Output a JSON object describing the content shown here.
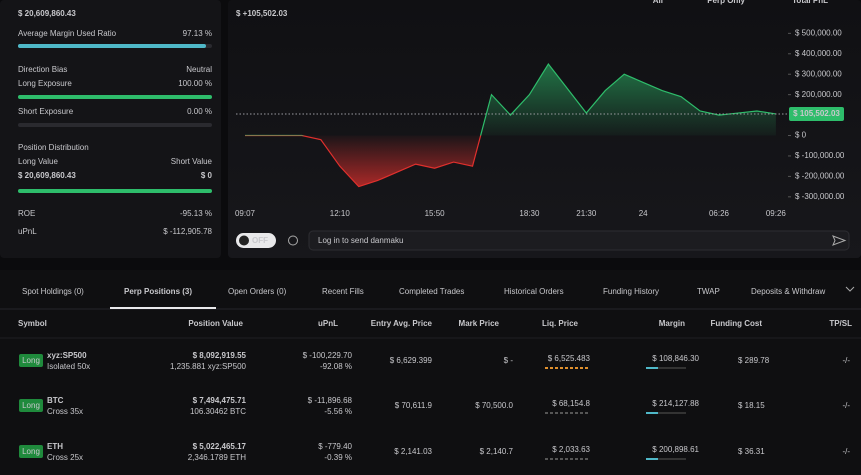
{
  "account": {
    "total_value": "$ 20,609,860.43",
    "margin_ratio_label": "Average Margin Used Ratio",
    "margin_ratio": "97.13 %",
    "direction_bias_label": "Direction Bias",
    "direction_bias": "Neutral",
    "long_exposure_label": "Long Exposure",
    "long_exposure": "100.00 %",
    "short_exposure_label": "Short Exposure",
    "short_exposure": "0.00 %",
    "position_distribution_label": "Position Distribution",
    "long_value_label": "Long Value",
    "short_value_label": "Short Value",
    "long_value": "$ 20,609,860.43",
    "short_value": "$ 0",
    "roe_label": "ROE",
    "roe": "-95.13 %",
    "upnl_label": "uPnL",
    "upnl": "$ -112,905.78"
  },
  "filters": [
    "All",
    "Perp Only",
    "Total PnL"
  ],
  "chart_data": {
    "type": "line",
    "title": "$ +105,502.03",
    "current_label": "$ 105,502.03",
    "categories": [
      "09:07",
      null,
      null,
      null,
      null,
      "12:10",
      null,
      null,
      null,
      null,
      "15:50",
      null,
      null,
      null,
      null,
      "18:30",
      null,
      null,
      "21:30",
      null,
      null,
      "24",
      null,
      null,
      null,
      "06:26",
      null,
      null,
      "09:26"
    ],
    "values": [
      0,
      0,
      0,
      0,
      -20000,
      -150000,
      -250000,
      -220000,
      -180000,
      -140000,
      -160000,
      -130000,
      -150000,
      200000,
      100000,
      200000,
      350000,
      230000,
      110000,
      220000,
      300000,
      260000,
      220000,
      190000,
      120000,
      100000,
      110000,
      120000,
      105502.03
    ],
    "ylim": [
      -340000,
      580000
    ],
    "yticks": [
      {
        "value": 500000,
        "label": "$ 500,000.00"
      },
      {
        "value": 400000,
        "label": "$ 400,000.00"
      },
      {
        "value": 300000,
        "label": "$ 300,000.00"
      },
      {
        "value": 200000,
        "label": "$ 200,000.00"
      },
      {
        "value": 0,
        "label": "$ 0"
      },
      {
        "value": -100000,
        "label": "$ -100,000.00"
      },
      {
        "value": -200000,
        "label": "$ -200,000.00"
      },
      {
        "value": -300000,
        "label": "$ -300,000.00"
      }
    ],
    "positive_color": "#2ebd6b",
    "negative_color": "#e0302d"
  },
  "chat": {
    "toggle": "OFF",
    "placeholder": "Log in to send danmaku"
  },
  "tabs": [
    "Spot Holdings (0)",
    "Perp Positions (3)",
    "Open Orders (0)",
    "Recent Fills",
    "Completed Trades",
    "Historical Orders",
    "Funding History",
    "TWAP",
    "Deposits & Withdraw"
  ],
  "table": {
    "headers": [
      "Symbol",
      "Position Value",
      "uPnL",
      "Entry Avg. Price",
      "Mark Price",
      "Liq. Price",
      "Margin",
      "Funding Cost",
      "TP/SL"
    ],
    "rows": [
      {
        "side": "Long",
        "symbol": "xyz:SP500",
        "margin_mode": "Isolated 50x",
        "position_value": "$ 8,092,919.55",
        "size": "1,235.881 xyz:SP500",
        "upnl": "$ -100,229.70",
        "upnl_pct": "-92.08 %",
        "entry_price": "$ 6,629.399",
        "mark_price": "$ -",
        "liq_price": "$ 6,525.483",
        "margin": "$ 108,846.30",
        "funding_cost": "$ 289.78",
        "tpsl": "-/-"
      },
      {
        "side": "Long",
        "symbol": "BTC",
        "margin_mode": "Cross 35x",
        "position_value": "$ 7,494,475.71",
        "size": "106.30462 BTC",
        "upnl": "$ -11,896.68",
        "upnl_pct": "-5.56 %",
        "entry_price": "$ 70,611.9",
        "mark_price": "$ 70,500.0",
        "liq_price": "$ 68,154.8",
        "margin": "$ 214,127.88",
        "funding_cost": "$ 18.15",
        "tpsl": "-/-"
      },
      {
        "side": "Long",
        "symbol": "ETH",
        "margin_mode": "Cross 25x",
        "position_value": "$ 5,022,465.17",
        "size": "2,346.1789 ETH",
        "upnl": "$ -779.40",
        "upnl_pct": "-0.39 %",
        "entry_price": "$ 2,141.03",
        "mark_price": "$ 2,140.7",
        "liq_price": "$ 2,033.63",
        "margin": "$ 200,898.61",
        "funding_cost": "$ 36.31",
        "tpsl": "-/-"
      }
    ]
  }
}
